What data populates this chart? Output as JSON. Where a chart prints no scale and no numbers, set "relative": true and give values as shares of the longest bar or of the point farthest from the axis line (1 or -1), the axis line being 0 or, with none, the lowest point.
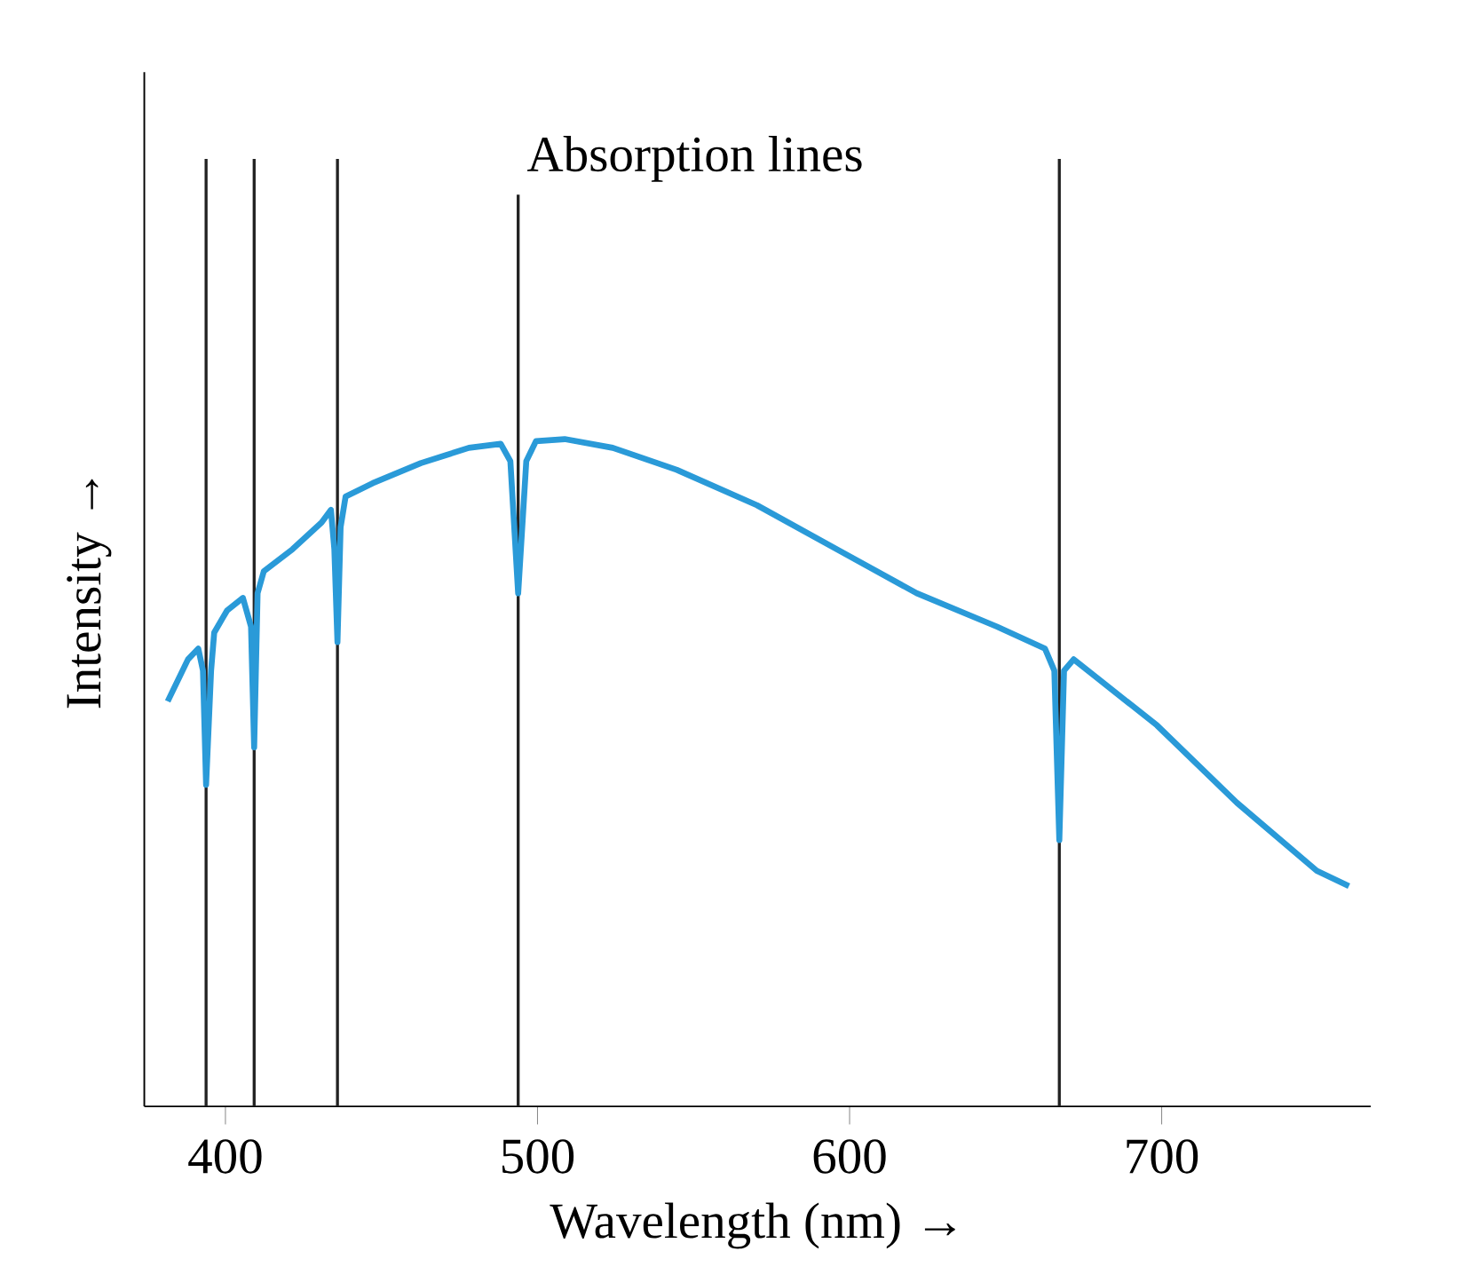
{
  "chart_data": {
    "type": "line",
    "relative": true,
    "xlabel": "Wavelength (nm) →",
    "ylabel": "Intensity →",
    "annotations": [
      "Absorption lines"
    ],
    "xlim": [
      374,
      767
    ],
    "xticks": [
      400,
      500,
      600,
      700
    ],
    "tick_labels": "x",
    "grid": false,
    "ref_lines": [
      {
        "axis": "x",
        "value": 393.8
      },
      {
        "axis": "x",
        "value": 409.2
      },
      {
        "axis": "x",
        "value": 435.9
      },
      {
        "axis": "x",
        "value": 493.8
      },
      {
        "axis": "x",
        "value": 667.2
      }
    ],
    "series": [
      {
        "color": "#2a9ad8",
        "x": [
          381.5,
          388,
          391.3,
          392.8,
          393.8,
          395.4,
          396.4,
          400.5,
          405.6,
          408.2,
          409.2,
          410.3,
          412.3,
          421.5,
          430.8,
          433.8,
          434.9,
          435.9,
          436.9,
          438.5,
          447.2,
          462.6,
          478,
          488.2,
          491.3,
          493.8,
          496.4,
          499.5,
          508.7,
          524.1,
          544.6,
          570.3,
          595.9,
          621.5,
          647.2,
          662.6,
          665.6,
          667.2,
          668.7,
          671.8,
          698.5,
          724.1,
          749.7,
          760
        ],
        "values": [
          0.607,
          0.67,
          0.686,
          0.653,
          0.482,
          0.653,
          0.71,
          0.743,
          0.762,
          0.719,
          0.538,
          0.769,
          0.802,
          0.835,
          0.875,
          0.894,
          0.835,
          0.696,
          0.868,
          0.914,
          0.934,
          0.964,
          0.987,
          0.993,
          0.967,
          0.769,
          0.967,
          0.997,
          1.0,
          0.987,
          0.954,
          0.901,
          0.835,
          0.769,
          0.719,
          0.686,
          0.653,
          0.399,
          0.653,
          0.67,
          0.571,
          0.455,
          0.353,
          0.33
        ]
      }
    ]
  }
}
